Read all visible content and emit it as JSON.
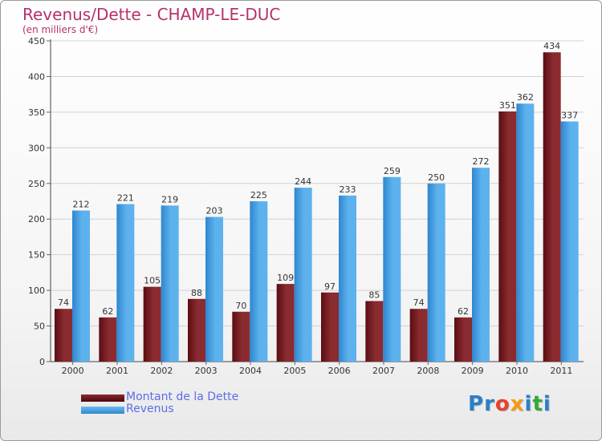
{
  "chart_data": {
    "type": "bar",
    "title": "Revenus/Dette - CHAMP-LE-DUC",
    "subtitle": "(en milliers d'€)",
    "categories": [
      "2000",
      "2001",
      "2002",
      "2003",
      "2004",
      "2005",
      "2006",
      "2007",
      "2008",
      "2009",
      "2010",
      "2011"
    ],
    "series": [
      {
        "name": "Montant de la Dette",
        "color": "#7a1a1f",
        "values": [
          74,
          62,
          105,
          88,
          70,
          109,
          97,
          85,
          74,
          62,
          351,
          434
        ]
      },
      {
        "name": "Revenus",
        "color": "#4aa3e6",
        "values": [
          212,
          221,
          219,
          203,
          225,
          244,
          233,
          259,
          250,
          272,
          362,
          337
        ]
      }
    ],
    "ylim": [
      0,
      450
    ],
    "yticks": [
      0,
      50,
      100,
      150,
      200,
      250,
      300,
      350,
      400,
      450
    ],
    "grid": true,
    "legend": "bottom-left"
  },
  "logo": {
    "text": "Proxiti",
    "colors": [
      "#2a7fc9",
      "#2a7fc9",
      "#e8412c",
      "#f39c12",
      "#2a7fc9",
      "#35a93b",
      "#2a7fc9"
    ]
  }
}
